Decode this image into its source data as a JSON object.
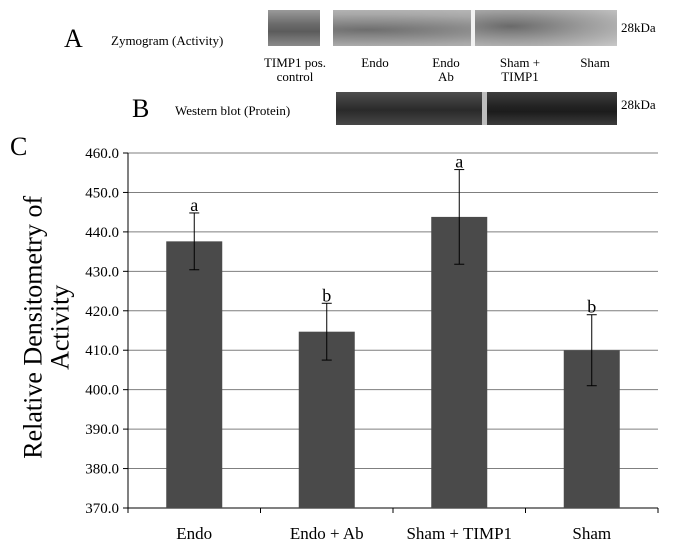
{
  "panels": {
    "a_letter": "A",
    "b_letter": "B",
    "c_letter": "C",
    "zymogram_label": "Zymogram (Activity)",
    "western_label": "Western blot (Protein)",
    "size_marker_a": "28kDa",
    "size_marker_b": "28kDa",
    "lanes": [
      {
        "line1": "TIMP1 pos.",
        "line2": "control"
      },
      {
        "line1": "Endo",
        "line2": ""
      },
      {
        "line1": "Endo",
        "line2": "Ab"
      },
      {
        "line1": "Sham +",
        "line2": "TIMP1"
      },
      {
        "line1": "Sham",
        "line2": ""
      }
    ]
  },
  "colors": {
    "bar": "#4a4a4a",
    "grid": "#7f7f7f",
    "blot_light": "#c9c9c9",
    "blot_dark": "#5a5a5a"
  },
  "chart_data": {
    "type": "bar",
    "categories": [
      "Endo",
      "Endo + Ab",
      "Sham + TIMP1",
      "Sham"
    ],
    "values": [
      437.6,
      414.7,
      443.8,
      410.0
    ],
    "errors": [
      7.2,
      7.2,
      12.0,
      9.0
    ],
    "annotations": [
      "a",
      "b",
      "a",
      "b"
    ],
    "ylabel": "Relative Densitometry of Activity",
    "ylim": [
      370.0,
      460.0
    ],
    "ytick_step": 10.0,
    "yticks": [
      "370.0",
      "380.0",
      "390.0",
      "400.0",
      "410.0",
      "420.0",
      "430.0",
      "440.0",
      "450.0",
      "460.0"
    ],
    "grid": true,
    "legend": "none"
  }
}
